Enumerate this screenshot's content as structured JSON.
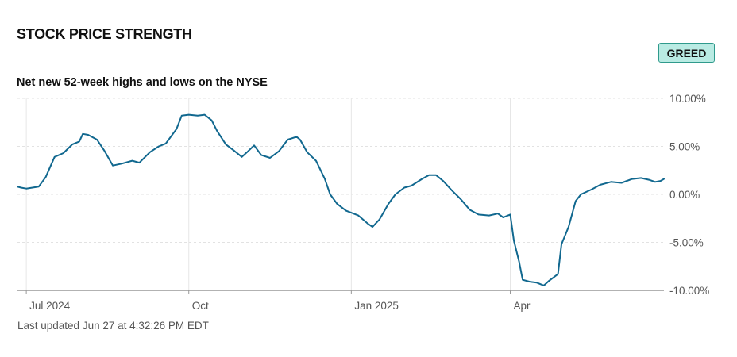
{
  "header": {
    "title": "STOCK PRICE STRENGTH",
    "badge": "GREED",
    "badge_color": "#b9ebe3"
  },
  "footer": {
    "updated": "Last updated Jun 27 at 4:32:26 PM EDT"
  },
  "chart_data": {
    "type": "line",
    "title": "Net new 52-week highs and lows on the NYSE",
    "xlabel": "",
    "ylabel": "",
    "x_ticks": [
      {
        "date": "2024-07-01",
        "label": "Jul 2024"
      },
      {
        "date": "2024-10-01",
        "label": "Oct"
      },
      {
        "date": "2025-01-01",
        "label": "Jan 2025"
      },
      {
        "date": "2025-04-01",
        "label": "Apr"
      }
    ],
    "y_ticks": [
      {
        "value": 10,
        "label": "10.00%"
      },
      {
        "value": 5,
        "label": "5.00%"
      },
      {
        "value": 0,
        "label": "0.00%"
      },
      {
        "value": -5,
        "label": "-5.00%"
      },
      {
        "value": -10,
        "label": "-10.00%"
      }
    ],
    "xlim": [
      "2024-06-26",
      "2025-06-27"
    ],
    "ylim": [
      -10,
      10
    ],
    "grid": true,
    "line_color": "#11688f",
    "series": [
      {
        "points": [
          [
            "2024-06-26",
            0.8
          ],
          [
            "2024-06-28",
            0.7
          ],
          [
            "2024-07-01",
            0.6
          ],
          [
            "2024-07-08",
            0.8
          ],
          [
            "2024-07-12",
            1.8
          ],
          [
            "2024-07-17",
            3.9
          ],
          [
            "2024-07-22",
            4.3
          ],
          [
            "2024-07-27",
            5.2
          ],
          [
            "2024-07-31",
            5.5
          ],
          [
            "2024-08-02",
            6.3
          ],
          [
            "2024-08-05",
            6.2
          ],
          [
            "2024-08-10",
            5.7
          ],
          [
            "2024-08-14",
            4.6
          ],
          [
            "2024-08-19",
            3.0
          ],
          [
            "2024-08-24",
            3.2
          ],
          [
            "2024-08-30",
            3.5
          ],
          [
            "2024-09-03",
            3.3
          ],
          [
            "2024-09-09",
            4.4
          ],
          [
            "2024-09-14",
            5.0
          ],
          [
            "2024-09-18",
            5.3
          ],
          [
            "2024-09-24",
            6.8
          ],
          [
            "2024-09-27",
            8.2
          ],
          [
            "2024-10-01",
            8.3
          ],
          [
            "2024-10-06",
            8.2
          ],
          [
            "2024-10-10",
            8.3
          ],
          [
            "2024-10-14",
            7.7
          ],
          [
            "2024-10-17",
            6.6
          ],
          [
            "2024-10-22",
            5.2
          ],
          [
            "2024-10-27",
            4.5
          ],
          [
            "2024-10-31",
            3.9
          ],
          [
            "2024-11-03",
            4.4
          ],
          [
            "2024-11-07",
            5.1
          ],
          [
            "2024-11-11",
            4.1
          ],
          [
            "2024-11-16",
            3.8
          ],
          [
            "2024-11-21",
            4.5
          ],
          [
            "2024-11-26",
            5.7
          ],
          [
            "2024-12-01",
            6.0
          ],
          [
            "2024-12-03",
            5.7
          ],
          [
            "2024-12-07",
            4.4
          ],
          [
            "2024-12-12",
            3.5
          ],
          [
            "2024-12-17",
            1.6
          ],
          [
            "2024-12-20",
            0.0
          ],
          [
            "2024-12-24",
            -1.0
          ],
          [
            "2024-12-29",
            -1.7
          ],
          [
            "2025-01-05",
            -2.2
          ],
          [
            "2025-01-10",
            -3.0
          ],
          [
            "2025-01-13",
            -3.4
          ],
          [
            "2025-01-17",
            -2.6
          ],
          [
            "2025-01-22",
            -1.0
          ],
          [
            "2025-01-26",
            0.0
          ],
          [
            "2025-01-31",
            0.7
          ],
          [
            "2025-02-04",
            0.9
          ],
          [
            "2025-02-10",
            1.6
          ],
          [
            "2025-02-14",
            2.0
          ],
          [
            "2025-02-18",
            2.0
          ],
          [
            "2025-02-22",
            1.4
          ],
          [
            "2025-02-27",
            0.4
          ],
          [
            "2025-03-04",
            -0.5
          ],
          [
            "2025-03-09",
            -1.6
          ],
          [
            "2025-03-14",
            -2.1
          ],
          [
            "2025-03-20",
            -2.2
          ],
          [
            "2025-03-25",
            -2.0
          ],
          [
            "2025-03-28",
            -2.4
          ],
          [
            "2025-04-01",
            -2.1
          ],
          [
            "2025-04-03",
            -4.8
          ],
          [
            "2025-04-06",
            -7.0
          ],
          [
            "2025-04-08",
            -8.9
          ],
          [
            "2025-04-12",
            -9.1
          ],
          [
            "2025-04-16",
            -9.2
          ],
          [
            "2025-04-20",
            -9.5
          ],
          [
            "2025-04-23",
            -9.0
          ],
          [
            "2025-04-28",
            -8.3
          ],
          [
            "2025-04-30",
            -5.2
          ],
          [
            "2025-05-04",
            -3.4
          ],
          [
            "2025-05-08",
            -0.7
          ],
          [
            "2025-05-11",
            0.0
          ],
          [
            "2025-05-17",
            0.5
          ],
          [
            "2025-05-22",
            1.0
          ],
          [
            "2025-05-28",
            1.3
          ],
          [
            "2025-06-03",
            1.2
          ],
          [
            "2025-06-09",
            1.6
          ],
          [
            "2025-06-14",
            1.7
          ],
          [
            "2025-06-19",
            1.5
          ],
          [
            "2025-06-22",
            1.3
          ],
          [
            "2025-06-25",
            1.4
          ],
          [
            "2025-06-27",
            1.6
          ]
        ]
      }
    ]
  }
}
